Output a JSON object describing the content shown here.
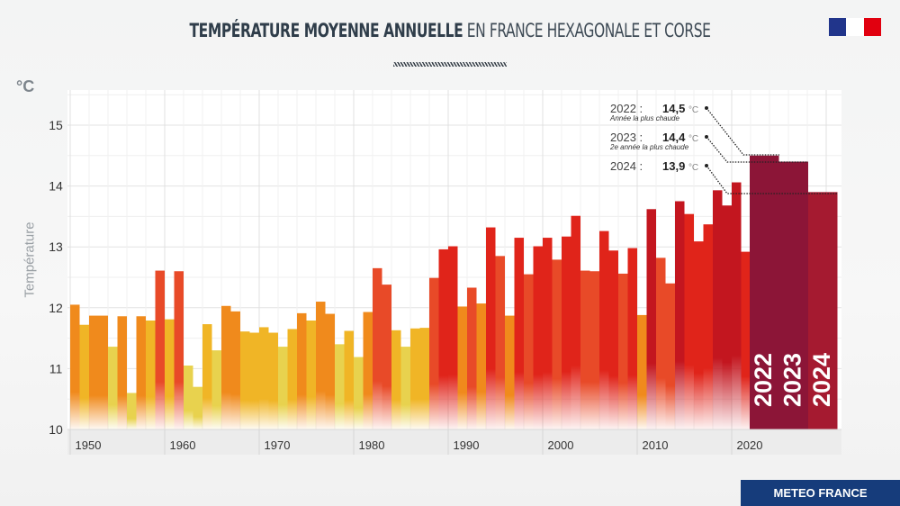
{
  "header": {
    "title_bold": "TEMPÉRATURE MOYENNE ANNUELLE",
    "title_light": "EN FRANCE HEXAGONALE ET CORSE",
    "logo": "Marianne République Française logo"
  },
  "footer": {
    "label": "METEO FRANCE"
  },
  "annotations": [
    {
      "year": "2022 :",
      "value": "14,5",
      "unit": "°C",
      "note": "Année la plus chaude"
    },
    {
      "year": "2023 :",
      "value": "14,4",
      "unit": "°C",
      "note": "2e année la plus chaude"
    },
    {
      "year": "2024 :",
      "value": "13,9",
      "unit": "°C",
      "note": ""
    }
  ],
  "chart_data": {
    "type": "bar",
    "title": "TEMPÉRATURE MOYENNE ANNUELLE EN FRANCE HEXAGONALE ET CORSE",
    "ylabel": "Température",
    "yunit": "°C",
    "ylim": [
      10,
      15.5
    ],
    "yticks": [
      10,
      11,
      12,
      13,
      14,
      15
    ],
    "xticks": [
      1950,
      1960,
      1970,
      1980,
      1990,
      2000,
      2010,
      2020
    ],
    "grid": true,
    "highlight_labels": [
      "2022",
      "2023",
      "2024"
    ],
    "years": [
      1950,
      1951,
      1952,
      1953,
      1954,
      1955,
      1956,
      1957,
      1958,
      1959,
      1960,
      1961,
      1962,
      1963,
      1964,
      1965,
      1966,
      1967,
      1968,
      1969,
      1970,
      1971,
      1972,
      1973,
      1974,
      1975,
      1976,
      1977,
      1978,
      1979,
      1980,
      1981,
      1982,
      1983,
      1984,
      1985,
      1986,
      1987,
      1988,
      1989,
      1990,
      1991,
      1992,
      1993,
      1994,
      1995,
      1996,
      1997,
      1998,
      1999,
      2000,
      2001,
      2002,
      2003,
      2004,
      2005,
      2006,
      2007,
      2008,
      2009,
      2010,
      2011,
      2012,
      2013,
      2014,
      2015,
      2016,
      2017,
      2018,
      2019,
      2020,
      2021,
      2022,
      2023,
      2024
    ],
    "values": [
      12.05,
      11.72,
      11.87,
      11.87,
      11.36,
      11.86,
      10.6,
      11.86,
      11.79,
      12.61,
      11.81,
      12.6,
      11.05,
      10.7,
      11.73,
      11.3,
      12.03,
      11.94,
      11.61,
      11.59,
      11.68,
      11.59,
      11.36,
      11.65,
      11.91,
      11.79,
      12.1,
      11.9,
      11.4,
      11.62,
      11.19,
      11.93,
      12.65,
      12.38,
      11.63,
      11.36,
      11.66,
      11.67,
      12.49,
      12.96,
      13.01,
      12.02,
      12.33,
      12.07,
      13.32,
      12.85,
      11.87,
      13.15,
      12.55,
      13.01,
      13.15,
      12.79,
      13.17,
      13.51,
      12.61,
      12.6,
      13.26,
      12.94,
      12.56,
      12.98,
      11.88,
      13.62,
      12.82,
      12.4,
      13.75,
      13.54,
      13.09,
      13.37,
      13.93,
      13.68,
      14.06,
      12.92,
      14.5,
      14.4,
      13.9
    ],
    "colors": {
      "cool": "#e8d24e",
      "mild": "#f0b526",
      "warm": "#f08a1c",
      "hot": "#e84a28",
      "hotter": "#e0241a",
      "hottest": "#c3161f",
      "record": "#8c1537"
    }
  }
}
